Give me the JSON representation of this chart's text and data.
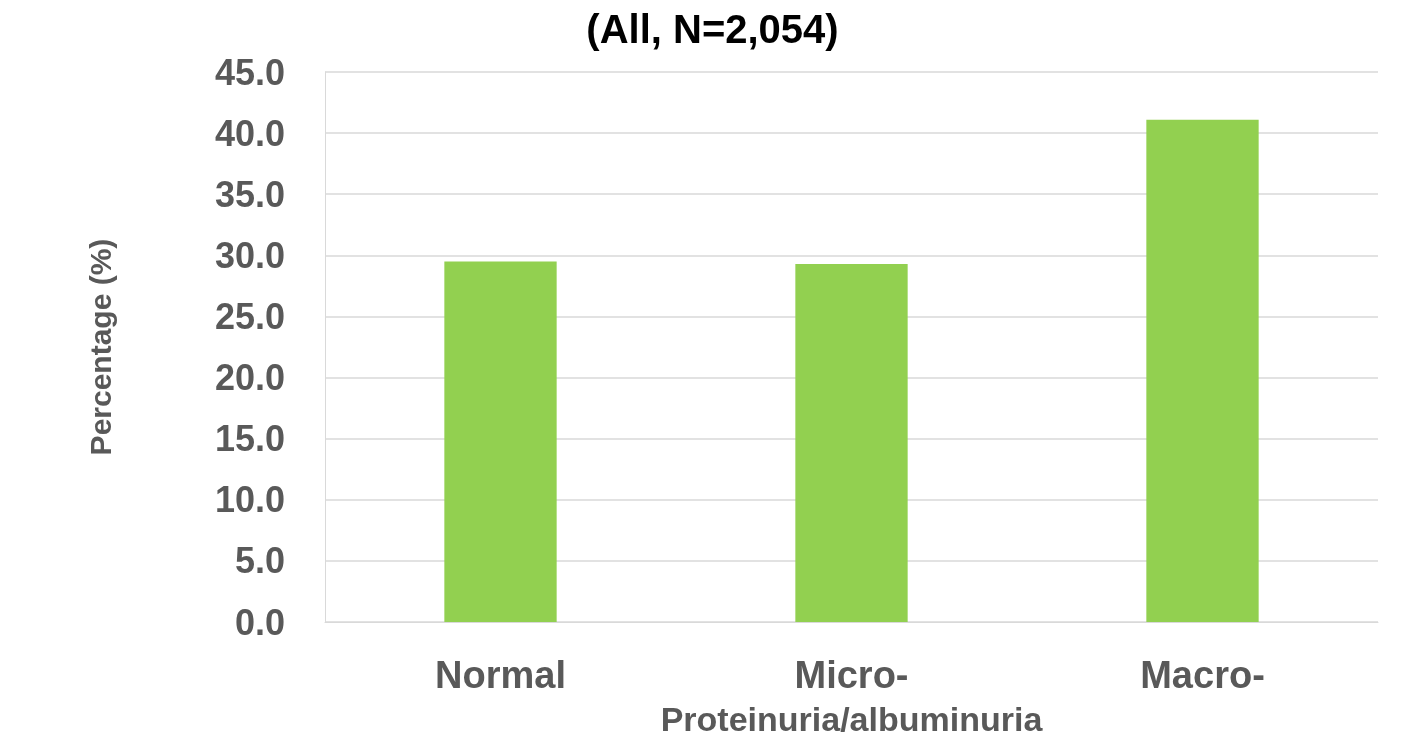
{
  "chart_data": {
    "type": "bar",
    "title": "(All, N=2,054)",
    "categories": [
      "Normal",
      "Micro-",
      "Macro-"
    ],
    "values": [
      29.5,
      29.3,
      41.1
    ],
    "color": "#92d050",
    "xlabel": "Proteinuria/albuminuria",
    "ylabel": "Percentage (%)",
    "ylim": [
      0,
      45
    ],
    "yticks": [
      {
        "value": 0,
        "label": "0.0"
      },
      {
        "value": 5,
        "label": "5.0"
      },
      {
        "value": 10,
        "label": "10.0"
      },
      {
        "value": 15,
        "label": "15.0"
      },
      {
        "value": 20,
        "label": "20.0"
      },
      {
        "value": 25,
        "label": "25.0"
      },
      {
        "value": 30,
        "label": "30.0"
      },
      {
        "value": 35,
        "label": "35.0"
      },
      {
        "value": 40,
        "label": "40.0"
      },
      {
        "value": 45,
        "label": "45.0"
      }
    ],
    "grid": "y"
  }
}
